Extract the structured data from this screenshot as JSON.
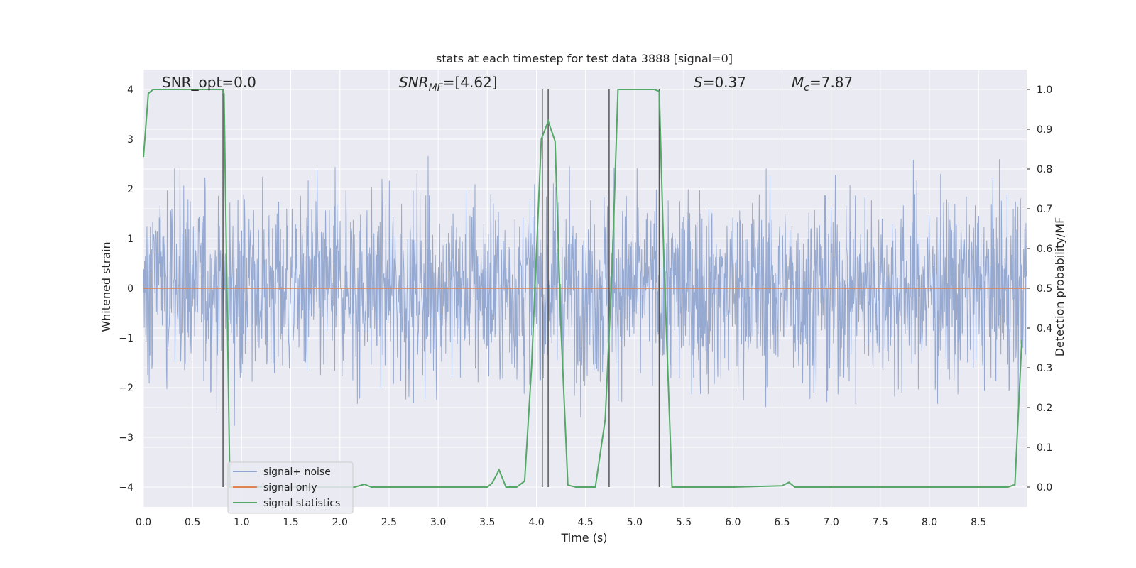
{
  "chart_data": {
    "type": "line",
    "title": "stats at each timestep for test data 3888 [signal=0]",
    "xlabel": "Time (s)",
    "ylabel": "Whitened strain",
    "y2label": "Detection probability/MF",
    "xlim": [
      0.0,
      8.99
    ],
    "ylim": [
      -4.4,
      4.4
    ],
    "y2lim": [
      -0.05,
      1.05
    ],
    "x_ticks": [
      "0.0",
      "0.5",
      "1.0",
      "1.5",
      "2.0",
      "2.5",
      "3.0",
      "3.5",
      "4.0",
      "4.5",
      "5.0",
      "5.5",
      "6.0",
      "6.5",
      "7.0",
      "7.5",
      "8.0",
      "8.5"
    ],
    "y_ticks": [
      "−4",
      "−3",
      "−2",
      "−1",
      "0",
      "1",
      "2",
      "3",
      "4"
    ],
    "y2_ticks": [
      "0.0",
      "0.1",
      "0.2",
      "0.3",
      "0.4",
      "0.5",
      "0.6",
      "0.7",
      "0.8",
      "0.9",
      "1.0"
    ],
    "grid": true,
    "legend_position": "lower-left",
    "annotations": {
      "snr_opt": "SNR_opt=0.0",
      "snr_mf_main": "SNR",
      "snr_mf_sub": "MF",
      "snr_mf_value": "=[4.62]",
      "s_main": "S",
      "s_value": "=0.37",
      "mc_main": "M",
      "mc_sub": "c",
      "mc_value": "=7.87"
    },
    "series": [
      {
        "name": "signal+ noise",
        "color": "#91a5cf",
        "description_values": "dense whitened noise, roughly within [-3.5, 4.0]"
      },
      {
        "name": "signal only",
        "color": "#dd8452",
        "x": [
          0.0,
          8.99
        ],
        "y": [
          0.0,
          0.0
        ]
      },
      {
        "name": "signal statistics",
        "color": "#55a868",
        "axis": "right",
        "x": [
          0.0,
          0.05,
          0.1,
          0.15,
          0.2,
          0.25,
          0.3,
          0.35,
          0.4,
          0.45,
          0.5,
          0.55,
          0.6,
          0.65,
          0.7,
          0.75,
          0.8,
          0.82,
          0.88,
          0.95,
          1.0,
          1.5,
          2.0,
          2.15,
          2.25,
          2.32,
          3.0,
          3.5,
          3.55,
          3.62,
          3.69,
          3.8,
          3.88,
          3.95,
          4.05,
          4.12,
          4.19,
          4.25,
          4.32,
          4.4,
          4.6,
          4.7,
          4.77,
          4.83,
          5.0,
          5.2,
          5.25,
          5.3,
          5.38,
          5.45,
          6.0,
          6.5,
          6.57,
          6.63,
          7.0,
          8.0,
          8.8,
          8.87,
          8.94
        ],
        "y": [
          0.83,
          0.99,
          1.0,
          1.0,
          1.0,
          1.0,
          1.0,
          1.0,
          1.0,
          1.0,
          1.0,
          1.0,
          1.0,
          1.0,
          1.0,
          1.0,
          1.0,
          0.99,
          0.0,
          0.0,
          0.0,
          0.0,
          0.0,
          0.0,
          0.007,
          0.0,
          0.0,
          0.0,
          0.01,
          0.043,
          0.0,
          0.0,
          0.015,
          0.3,
          0.875,
          0.92,
          0.87,
          0.4,
          0.005,
          0.0,
          0.0,
          0.17,
          0.55,
          1.0,
          1.0,
          1.0,
          0.995,
          0.55,
          0.0,
          0.0,
          0.0,
          0.003,
          0.012,
          0.0,
          0.0,
          0.0,
          0.0,
          0.006,
          0.37
        ]
      }
    ],
    "vertical_lines_x": [
      0.81,
      4.06,
      4.12,
      4.74,
      5.25
    ]
  }
}
